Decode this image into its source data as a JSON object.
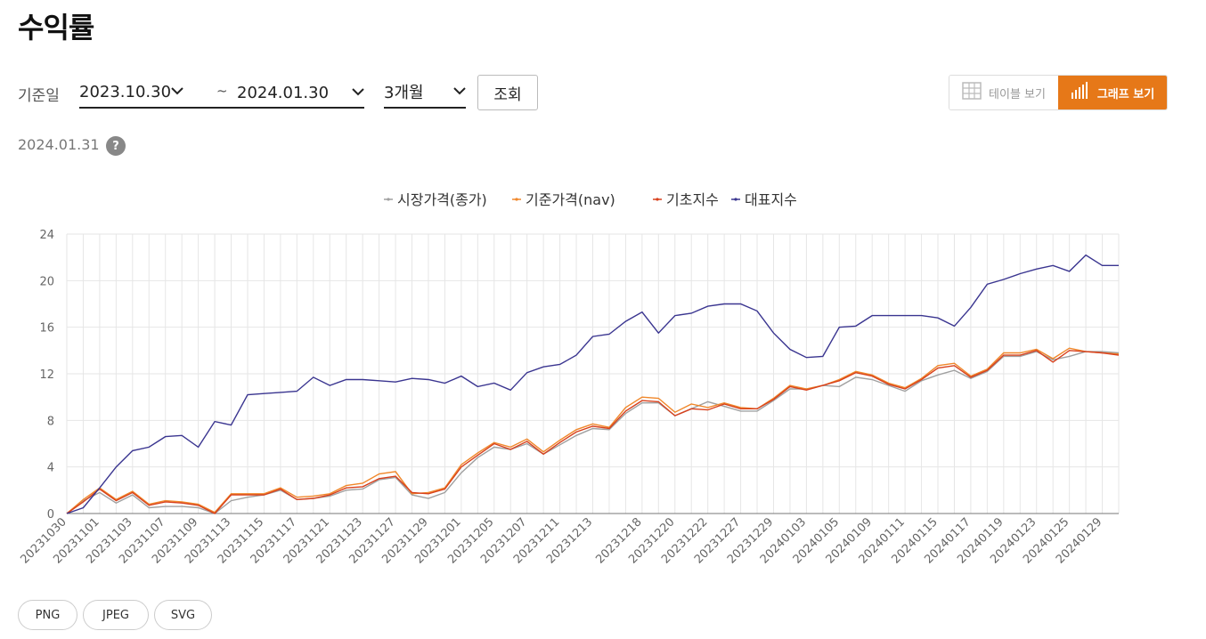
{
  "page": {
    "title": "수익률"
  },
  "filters": {
    "label": "기준일",
    "start_date": "2023.10.30",
    "separator": "~",
    "end_date": "2024.01.30",
    "period": "3개월",
    "search_label": "조회"
  },
  "view_toggle": {
    "table_label": "테이블 보기",
    "graph_label": "그래프 보기",
    "active": "graph"
  },
  "as_of_date": "2024.01.31",
  "help": "?",
  "export_buttons": [
    "PNG",
    "JPEG",
    "SVG"
  ],
  "chart_data": {
    "type": "line",
    "legend_position": "top-center",
    "grid": true,
    "ylim": [
      0,
      24
    ],
    "yticks": [
      0,
      4,
      8,
      12,
      16,
      20,
      24
    ],
    "x": [
      "20231030",
      "20231031",
      "20231101",
      "20231102",
      "20231103",
      "20231106",
      "20231107",
      "20231108",
      "20231109",
      "20231110",
      "20231113",
      "20231114",
      "20231115",
      "20231116",
      "20231117",
      "20231120",
      "20231121",
      "20231122",
      "20231123",
      "20231124",
      "20231127",
      "20231128",
      "20231129",
      "20231130",
      "20231201",
      "20231204",
      "20231205",
      "20231206",
      "20231207",
      "20231208",
      "20231211",
      "20231212",
      "20231213",
      "20231214",
      "20231215",
      "20231218",
      "20231219",
      "20231220",
      "20231221",
      "20231222",
      "20231226",
      "20231227",
      "20231228",
      "20231229",
      "20240102",
      "20240103",
      "20240104",
      "20240105",
      "20240108",
      "20240109",
      "20240110",
      "20240111",
      "20240112",
      "20240115",
      "20240116",
      "20240117",
      "20240118",
      "20240119",
      "20240122",
      "20240123",
      "20240124",
      "20240125",
      "20240126",
      "20240129",
      "20240130"
    ],
    "xtick_labels": [
      "20231030",
      "20231101",
      "20231103",
      "20231107",
      "20231109",
      "20231113",
      "20231115",
      "20231117",
      "20231121",
      "20231123",
      "20231127",
      "20231129",
      "20231201",
      "20231205",
      "20231207",
      "20231211",
      "20231213",
      "20231218",
      "20231220",
      "20231222",
      "20231227",
      "20231229",
      "20240103",
      "20240105",
      "20240109",
      "20240111",
      "20240115",
      "20240117",
      "20240119",
      "20240123",
      "20240125",
      "20240129"
    ],
    "series": [
      {
        "name": "시장가격(종가)",
        "color": "#a0a0a0",
        "values": [
          0,
          1.1,
          1.8,
          0.9,
          1.6,
          0.5,
          0.6,
          0.6,
          0.5,
          0.0,
          1.1,
          1.4,
          1.6,
          2.0,
          1.2,
          1.3,
          1.5,
          2.0,
          2.1,
          2.9,
          3.1,
          1.6,
          1.3,
          1.8,
          3.5,
          4.8,
          5.7,
          5.5,
          6.0,
          5.1,
          5.9,
          6.7,
          7.3,
          7.2,
          8.6,
          9.5,
          9.5,
          8.4,
          9.0,
          9.6,
          9.2,
          8.8,
          8.8,
          9.7,
          10.7,
          10.7,
          11.0,
          10.9,
          11.7,
          11.5,
          11.0,
          10.5,
          11.4,
          11.9,
          12.3,
          11.6,
          12.2,
          13.5,
          13.5,
          13.9,
          13.2,
          13.5,
          13.9,
          13.9,
          13.8
        ]
      },
      {
        "name": "기준가격(nav)",
        "color": "#f0872a",
        "values": [
          0,
          1.2,
          2.2,
          1.2,
          1.9,
          0.8,
          1.1,
          1.0,
          0.8,
          0.1,
          1.7,
          1.7,
          1.7,
          2.2,
          1.4,
          1.5,
          1.7,
          2.4,
          2.6,
          3.4,
          3.6,
          1.7,
          1.8,
          2.2,
          4.2,
          5.2,
          6.1,
          5.7,
          6.4,
          5.3,
          6.3,
          7.2,
          7.7,
          7.4,
          9.1,
          10.0,
          9.9,
          8.7,
          9.4,
          9.1,
          9.5,
          9.1,
          9.0,
          9.9,
          11.0,
          10.7,
          11.0,
          11.5,
          12.2,
          11.9,
          11.2,
          10.8,
          11.6,
          12.7,
          12.9,
          11.8,
          12.4,
          13.8,
          13.8,
          14.1,
          13.3,
          14.2,
          13.9,
          13.8,
          13.7
        ]
      },
      {
        "name": "기초지수",
        "color": "#d8401c",
        "values": [
          0,
          1.0,
          2.1,
          1.1,
          1.8,
          0.7,
          1.0,
          0.9,
          0.7,
          0.0,
          1.6,
          1.6,
          1.6,
          2.1,
          1.2,
          1.3,
          1.6,
          2.2,
          2.3,
          3.0,
          3.2,
          1.8,
          1.7,
          2.1,
          4.0,
          5.0,
          6.0,
          5.5,
          6.2,
          5.1,
          6.1,
          7.0,
          7.5,
          7.3,
          8.8,
          9.7,
          9.6,
          8.4,
          9.0,
          8.9,
          9.4,
          9.0,
          9.0,
          9.8,
          10.9,
          10.6,
          11.0,
          11.4,
          12.1,
          11.8,
          11.1,
          10.7,
          11.5,
          12.5,
          12.7,
          11.7,
          12.3,
          13.6,
          13.6,
          14.0,
          13.0,
          14.0,
          13.9,
          13.8,
          13.6
        ]
      },
      {
        "name": "대표지수",
        "color": "#3a3590",
        "values": [
          0,
          0.5,
          2.2,
          4.0,
          5.4,
          5.7,
          6.6,
          6.7,
          5.7,
          7.9,
          7.6,
          10.2,
          10.3,
          10.4,
          10.5,
          11.7,
          11.0,
          11.5,
          11.5,
          11.4,
          11.3,
          11.6,
          11.5,
          11.2,
          11.8,
          10.9,
          11.2,
          10.6,
          12.1,
          12.6,
          12.8,
          13.6,
          15.2,
          15.4,
          16.5,
          17.3,
          15.5,
          17.0,
          17.2,
          17.8,
          18.0,
          18.0,
          17.4,
          15.5,
          14.1,
          13.4,
          13.5,
          16.0,
          16.1,
          17.0,
          17.0,
          17.0,
          17.0,
          16.8,
          16.1,
          17.7,
          19.7,
          20.1,
          20.6,
          21.0,
          21.3,
          20.8,
          22.2,
          21.3,
          21.3
        ]
      }
    ]
  }
}
